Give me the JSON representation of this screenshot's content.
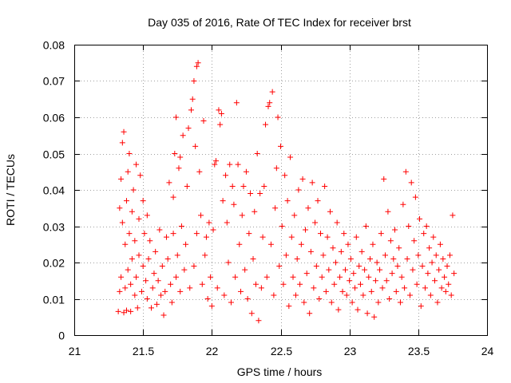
{
  "chart_data": {
    "type": "scatter",
    "title": "Day 035 of 2016, Rate Of TEC Index for receiver brst",
    "xlabel": "GPS time / hours",
    "ylabel": "ROTI / TECUs",
    "xlim": [
      21,
      24
    ],
    "ylim": [
      0,
      0.08
    ],
    "grid": true,
    "marker": "+",
    "color": "#ff0000",
    "x_ticks": [
      21,
      21.5,
      22,
      22.5,
      23,
      23.5,
      24
    ],
    "x_tick_labels": [
      "21",
      "21.5",
      "22",
      "22.5",
      "23",
      "23.5",
      "24"
    ],
    "y_ticks": [
      0,
      0.01,
      0.02,
      0.03,
      0.04,
      0.05,
      0.06,
      0.07,
      0.08
    ],
    "y_tick_labels": [
      "0",
      "0.01",
      "0.02",
      "0.03",
      "0.04",
      "0.05",
      "0.06",
      "0.07",
      "0.08"
    ],
    "series": [
      {
        "name": "ROTI",
        "points": [
          [
            21.32,
            0.0065
          ],
          [
            21.33,
            0.012
          ],
          [
            21.33,
            0.035
          ],
          [
            21.34,
            0.043
          ],
          [
            21.34,
            0.016
          ],
          [
            21.35,
            0.053
          ],
          [
            21.35,
            0.031
          ],
          [
            21.36,
            0.056
          ],
          [
            21.36,
            0.0062
          ],
          [
            21.37,
            0.025
          ],
          [
            21.37,
            0.013
          ],
          [
            21.38,
            0.037
          ],
          [
            21.38,
            0.0068
          ],
          [
            21.39,
            0.045
          ],
          [
            21.39,
            0.018
          ],
          [
            21.4,
            0.05
          ],
          [
            21.4,
            0.028
          ],
          [
            21.41,
            0.0065
          ],
          [
            21.41,
            0.014
          ],
          [
            21.42,
            0.034
          ],
          [
            21.42,
            0.021
          ],
          [
            21.43,
            0.04
          ],
          [
            21.44,
            0.011
          ],
          [
            21.44,
            0.026
          ],
          [
            21.45,
            0.047
          ],
          [
            21.45,
            0.016
          ],
          [
            21.46,
            0.0075
          ],
          [
            21.47,
            0.022
          ],
          [
            21.47,
            0.032
          ],
          [
            21.48,
            0.044
          ],
          [
            21.49,
            0.012
          ],
          [
            21.5,
            0.019
          ],
          [
            21.5,
            0.037
          ],
          [
            21.51,
            0.028
          ],
          [
            21.52,
            0.015
          ],
          [
            21.53,
            0.033
          ],
          [
            21.53,
            0.01
          ],
          [
            21.54,
            0.021
          ],
          [
            21.55,
            0.026
          ],
          [
            21.56,
            0.0075
          ],
          [
            21.57,
            0.013
          ],
          [
            21.58,
            0.017
          ],
          [
            21.59,
            0.023
          ],
          [
            21.6,
            0.0085
          ],
          [
            21.61,
            0.015
          ],
          [
            21.62,
            0.029
          ],
          [
            21.63,
            0.011
          ],
          [
            21.64,
            0.019
          ],
          [
            21.65,
            0.0055
          ],
          [
            21.66,
            0.012
          ],
          [
            21.67,
            0.027
          ],
          [
            21.68,
            0.021
          ],
          [
            21.69,
            0.042
          ],
          [
            21.7,
            0.014
          ],
          [
            21.71,
            0.009
          ],
          [
            21.72,
            0.028
          ],
          [
            21.72,
            0.038
          ],
          [
            21.73,
            0.05
          ],
          [
            21.74,
            0.06
          ],
          [
            21.74,
            0.016
          ],
          [
            21.75,
            0.022
          ],
          [
            21.76,
            0.046
          ],
          [
            21.77,
            0.049
          ],
          [
            21.77,
            0.012
          ],
          [
            21.78,
            0.03
          ],
          [
            21.79,
            0.055
          ],
          [
            21.8,
            0.018
          ],
          [
            21.81,
            0.025
          ],
          [
            21.82,
            0.041
          ],
          [
            21.83,
            0.057
          ],
          [
            21.84,
            0.013
          ],
          [
            21.85,
            0.062
          ],
          [
            21.86,
            0.065
          ],
          [
            21.87,
            0.07
          ],
          [
            21.87,
            0.019
          ],
          [
            21.88,
            0.052
          ],
          [
            21.89,
            0.074
          ],
          [
            21.89,
            0.028
          ],
          [
            21.9,
            0.075
          ],
          [
            21.91,
            0.045
          ],
          [
            21.92,
            0.033
          ],
          [
            21.93,
            0.014
          ],
          [
            21.94,
            0.059
          ],
          [
            21.95,
            0.022
          ],
          [
            21.96,
            0.027
          ],
          [
            21.97,
            0.01
          ],
          [
            21.98,
            0.031
          ],
          [
            21.99,
            0.016
          ],
          [
            22.0,
            0.008
          ],
          [
            22.01,
            0.029
          ],
          [
            22.02,
            0.047
          ],
          [
            22.03,
            0.048
          ],
          [
            22.04,
            0.013
          ],
          [
            22.05,
            0.062
          ],
          [
            22.06,
            0.058
          ],
          [
            22.07,
            0.061
          ],
          [
            22.08,
            0.037
          ],
          [
            22.09,
            0.011
          ],
          [
            22.1,
            0.044
          ],
          [
            22.11,
            0.031
          ],
          [
            22.12,
            0.02
          ],
          [
            22.13,
            0.047
          ],
          [
            22.14,
            0.009
          ],
          [
            22.15,
            0.041
          ],
          [
            22.16,
            0.036
          ],
          [
            22.17,
            0.016
          ],
          [
            22.18,
            0.064
          ],
          [
            22.19,
            0.047
          ],
          [
            22.2,
            0.025
          ],
          [
            22.21,
            0.012
          ],
          [
            22.22,
            0.033
          ],
          [
            22.23,
            0.041
          ],
          [
            22.24,
            0.018
          ],
          [
            22.25,
            0.045
          ],
          [
            22.26,
            0.01
          ],
          [
            22.27,
            0.028
          ],
          [
            22.28,
            0.039
          ],
          [
            22.29,
            0.006
          ],
          [
            22.3,
            0.021
          ],
          [
            22.31,
            0.034
          ],
          [
            22.32,
            0.014
          ],
          [
            22.33,
            0.05
          ],
          [
            22.34,
            0.004
          ],
          [
            22.35,
            0.039
          ],
          [
            22.36,
            0.013
          ],
          [
            22.37,
            0.027
          ],
          [
            22.38,
            0.041
          ],
          [
            22.39,
            0.058
          ],
          [
            22.4,
            0.016
          ],
          [
            22.41,
            0.063
          ],
          [
            22.42,
            0.064
          ],
          [
            22.43,
            0.025
          ],
          [
            22.44,
            0.067
          ],
          [
            22.45,
            0.011
          ],
          [
            22.46,
            0.035
          ],
          [
            22.47,
            0.046
          ],
          [
            22.48,
            0.06
          ],
          [
            22.49,
            0.019
          ],
          [
            22.5,
            0.052
          ],
          [
            22.51,
            0.03
          ],
          [
            22.52,
            0.014
          ],
          [
            22.53,
            0.044
          ],
          [
            22.54,
            0.022
          ],
          [
            22.55,
            0.037
          ],
          [
            22.56,
            0.008
          ],
          [
            22.57,
            0.049
          ],
          [
            22.58,
            0.027
          ],
          [
            22.59,
            0.016
          ],
          [
            22.6,
            0.033
          ],
          [
            22.61,
            0.011
          ],
          [
            22.62,
            0.021
          ],
          [
            22.63,
            0.04
          ],
          [
            22.64,
            0.014
          ],
          [
            22.65,
            0.025
          ],
          [
            22.66,
            0.043
          ],
          [
            22.67,
            0.009
          ],
          [
            22.68,
            0.029
          ],
          [
            22.69,
            0.017
          ],
          [
            22.7,
            0.035
          ],
          [
            22.71,
            0.006
          ],
          [
            22.72,
            0.023
          ],
          [
            22.73,
            0.042
          ],
          [
            22.74,
            0.013
          ],
          [
            22.75,
            0.031
          ],
          [
            22.76,
            0.019
          ],
          [
            22.77,
            0.037
          ],
          [
            22.78,
            0.01
          ],
          [
            22.79,
            0.028
          ],
          [
            22.8,
            0.016
          ],
          [
            22.81,
            0.022
          ],
          [
            22.82,
            0.041
          ],
          [
            22.83,
            0.012
          ],
          [
            22.84,
            0.027
          ],
          [
            22.85,
            0.018
          ],
          [
            22.86,
            0.034
          ],
          [
            22.87,
            0.009
          ],
          [
            22.88,
            0.024
          ],
          [
            22.89,
            0.014
          ],
          [
            22.9,
            0.02
          ],
          [
            22.91,
            0.031
          ],
          [
            22.92,
            0.007
          ],
          [
            22.93,
            0.016
          ],
          [
            22.94,
            0.023
          ],
          [
            22.95,
            0.012
          ],
          [
            22.96,
            0.028
          ],
          [
            22.97,
            0.018
          ],
          [
            22.98,
            0.011
          ],
          [
            22.99,
            0.025
          ],
          [
            23.0,
            0.015
          ],
          [
            23.01,
            0.021
          ],
          [
            23.02,
            0.009
          ],
          [
            23.03,
            0.017
          ],
          [
            23.04,
            0.013
          ],
          [
            23.05,
            0.027
          ],
          [
            23.06,
            0.007
          ],
          [
            23.07,
            0.019
          ],
          [
            23.08,
            0.014
          ],
          [
            23.09,
            0.023
          ],
          [
            23.1,
            0.011
          ],
          [
            23.11,
            0.018
          ],
          [
            23.12,
            0.03
          ],
          [
            23.13,
            0.006
          ],
          [
            23.14,
            0.016
          ],
          [
            23.15,
            0.021
          ],
          [
            23.16,
            0.012
          ],
          [
            23.17,
            0.025
          ],
          [
            23.18,
            0.005
          ],
          [
            23.19,
            0.015
          ],
          [
            23.2,
            0.02
          ],
          [
            23.21,
            0.009
          ],
          [
            23.22,
            0.018
          ],
          [
            23.23,
            0.028
          ],
          [
            23.24,
            0.013
          ],
          [
            23.25,
            0.043
          ],
          [
            23.26,
            0.022
          ],
          [
            23.27,
            0.015
          ],
          [
            23.28,
            0.034
          ],
          [
            23.29,
            0.01
          ],
          [
            23.3,
            0.026
          ],
          [
            23.31,
            0.017
          ],
          [
            23.32,
            0.021
          ],
          [
            23.33,
            0.029
          ],
          [
            23.34,
            0.012
          ],
          [
            23.35,
            0.019
          ],
          [
            23.36,
            0.024
          ],
          [
            23.37,
            0.009
          ],
          [
            23.38,
            0.016
          ],
          [
            23.39,
            0.036
          ],
          [
            23.4,
            0.013
          ],
          [
            23.41,
            0.045
          ],
          [
            23.42,
            0.021
          ],
          [
            23.43,
            0.03
          ],
          [
            23.44,
            0.011
          ],
          [
            23.45,
            0.042
          ],
          [
            23.46,
            0.018
          ],
          [
            23.47,
            0.026
          ],
          [
            23.48,
            0.038
          ],
          [
            23.49,
            0.014
          ],
          [
            23.5,
            0.022
          ],
          [
            23.51,
            0.032
          ],
          [
            23.52,
            0.008
          ],
          [
            23.53,
            0.019
          ],
          [
            23.54,
            0.028
          ],
          [
            23.55,
            0.013
          ],
          [
            23.56,
            0.03
          ],
          [
            23.57,
            0.017
          ],
          [
            23.58,
            0.024
          ],
          [
            23.59,
            0.011
          ],
          [
            23.6,
            0.02
          ],
          [
            23.61,
            0.027
          ],
          [
            23.62,
            0.015
          ],
          [
            23.63,
            0.022
          ],
          [
            23.64,
            0.009
          ],
          [
            23.65,
            0.018
          ],
          [
            23.66,
            0.025
          ],
          [
            23.67,
            0.013
          ],
          [
            23.68,
            0.021
          ],
          [
            23.69,
            0.016
          ],
          [
            23.7,
            0.012
          ],
          [
            23.71,
            0.019
          ],
          [
            23.72,
            0.014
          ],
          [
            23.73,
            0.022
          ],
          [
            23.74,
            0.011
          ],
          [
            23.75,
            0.033
          ],
          [
            23.76,
            0.017
          ]
        ]
      }
    ]
  }
}
